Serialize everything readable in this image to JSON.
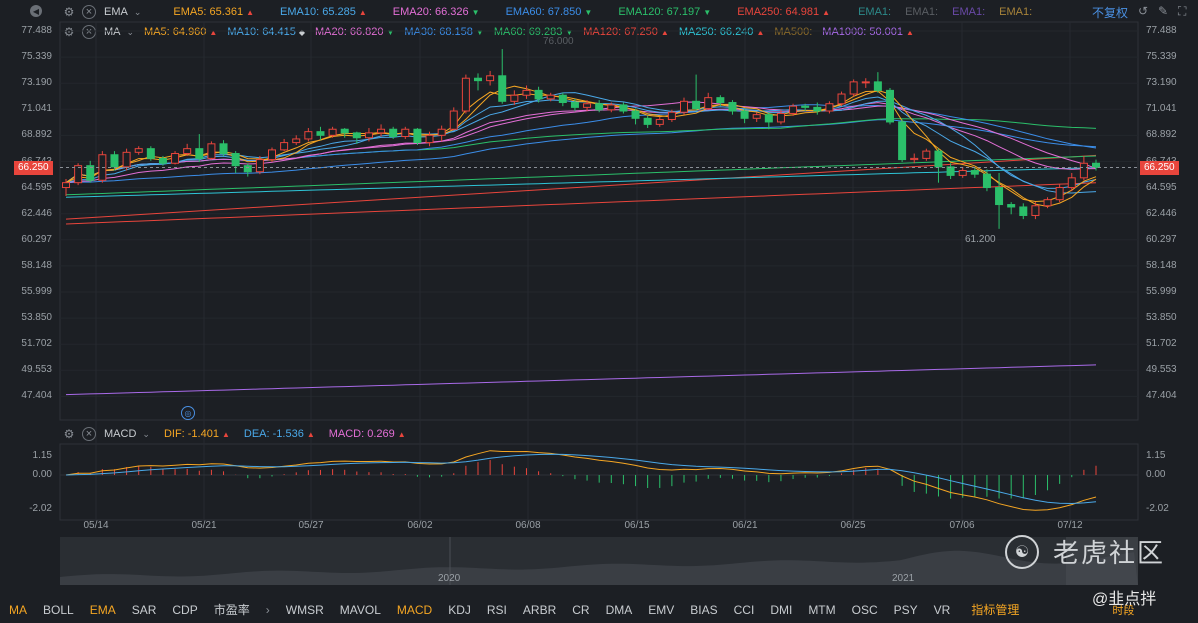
{
  "ema_row": {
    "name": "EMA",
    "items": [
      {
        "label": "EMA5: 65.361",
        "color": "#f5a623",
        "dir": "up"
      },
      {
        "label": "EMA10: 65.285",
        "color": "#4aa8e8",
        "dir": "up"
      },
      {
        "label": "EMA20: 66.326",
        "color": "#e36fd6",
        "dir": "dn"
      },
      {
        "label": "EMA60: 67.850",
        "color": "#3b8de8",
        "dir": "dn"
      },
      {
        "label": "EMA120: 67.197",
        "color": "#2bbf6a",
        "dir": "dn"
      },
      {
        "label": "EMA250: 64.981",
        "color": "#e8453c",
        "dir": "up"
      }
    ],
    "extra": [
      "EMA1:",
      "EMA1:",
      "EMA1:",
      "EMA1:"
    ],
    "extra_colors": [
      "#2c8a8a",
      "#5a5e63",
      "#6a4aa8",
      "#a8843a"
    ],
    "fq": "不复权"
  },
  "ma_row": {
    "name": "MA",
    "items": [
      {
        "label": "MA5: 64.960",
        "color": "#f5a623",
        "dir": "up"
      },
      {
        "label": "MA10: 64.415",
        "color": "#4aa8e8",
        "dir": "flat"
      },
      {
        "label": "MA20: 66.820",
        "color": "#e36fd6",
        "dir": "dn"
      },
      {
        "label": "MA30: 68.158",
        "color": "#3b8de8",
        "dir": "dn"
      },
      {
        "label": "MA60: 69.283",
        "color": "#2bbf6a",
        "dir": "dn"
      },
      {
        "label": "MA120: 67.250",
        "color": "#e8453c",
        "dir": "up"
      },
      {
        "label": "MA250: 66.240",
        "color": "#2ec4d6",
        "dir": "up"
      },
      {
        "label": "MA500:",
        "color": "#8a6a2a",
        "dir": "none"
      },
      {
        "label": "MA1000: 50.001",
        "color": "#a86ae8",
        "dir": "up"
      }
    ]
  },
  "price_axis": [
    "77.488",
    "75.339",
    "73.190",
    "71.041",
    "68.892",
    "66.743",
    "64.595",
    "62.446",
    "60.297",
    "58.148",
    "55.999",
    "53.850",
    "51.702",
    "49.553",
    "47.404"
  ],
  "current_price": "66.250",
  "high_label": "76.000",
  "low_label": "61.200",
  "macd_row": {
    "name": "MACD",
    "items": [
      {
        "label": "DIF: -1.401",
        "color": "#f5a623",
        "dir": "up"
      },
      {
        "label": "DEA: -1.536",
        "color": "#4aa8e8",
        "dir": "up"
      },
      {
        "label": "MACD: 0.269",
        "color": "#e36fd6",
        "dir": "up"
      }
    ]
  },
  "macd_axis": [
    "1.15",
    "0.00",
    "-2.02"
  ],
  "dates": [
    "05/14",
    "05/21",
    "05/27",
    "06/02",
    "06/08",
    "06/15",
    "06/21",
    "06/25",
    "07/06",
    "07/12"
  ],
  "navigator": {
    "years": [
      "2020",
      "2021"
    ]
  },
  "tabs": [
    {
      "label": "MA",
      "active": true
    },
    {
      "label": "BOLL",
      "active": false
    },
    {
      "label": "EMA",
      "active": true
    },
    {
      "label": "SAR",
      "active": false
    },
    {
      "label": "CDP",
      "active": false
    },
    {
      "label": "市盈率",
      "active": false
    },
    {
      "label": "WMSR",
      "active": false
    },
    {
      "label": "MAVOL",
      "active": false
    },
    {
      "label": "MACD",
      "active": true
    },
    {
      "label": "KDJ",
      "active": false
    },
    {
      "label": "RSI",
      "active": false
    },
    {
      "label": "ARBR",
      "active": false
    },
    {
      "label": "CR",
      "active": false
    },
    {
      "label": "DMA",
      "active": false
    },
    {
      "label": "EMV",
      "active": false
    },
    {
      "label": "BIAS",
      "active": false
    },
    {
      "label": "CCI",
      "active": false
    },
    {
      "label": "DMI",
      "active": false
    },
    {
      "label": "MTM",
      "active": false
    },
    {
      "label": "OSC",
      "active": false
    },
    {
      "label": "PSY",
      "active": false
    },
    {
      "label": "VR",
      "active": false
    }
  ],
  "tab_more": "指标管理",
  "tab_period": "时段",
  "watermark": "老虎社区",
  "watermark_user": "@韭点拌",
  "chart_data": {
    "type": "candlestick",
    "ylim": [
      47.404,
      77.488
    ],
    "candles": [
      [
        64.6,
        65.0,
        63.9,
        65.3
      ],
      [
        65.0,
        66.4,
        64.8,
        66.6
      ],
      [
        66.4,
        65.2,
        65.0,
        66.8
      ],
      [
        65.2,
        67.3,
        65.0,
        67.6
      ],
      [
        67.3,
        66.3,
        66.0,
        67.6
      ],
      [
        66.3,
        67.5,
        66.0,
        67.8
      ],
      [
        67.5,
        67.8,
        67.3,
        68.0
      ],
      [
        67.8,
        67.0,
        66.8,
        68.0
      ],
      [
        67.0,
        66.6,
        66.4,
        67.2
      ],
      [
        66.6,
        67.4,
        66.5,
        67.6
      ],
      [
        67.4,
        67.8,
        67.2,
        68.2
      ],
      [
        67.8,
        67.0,
        66.7,
        69.0
      ],
      [
        67.0,
        68.2,
        66.9,
        68.4
      ],
      [
        68.2,
        67.4,
        67.2,
        68.5
      ],
      [
        67.4,
        66.4,
        65.8,
        67.6
      ],
      [
        66.4,
        65.9,
        65.5,
        66.6
      ],
      [
        65.9,
        66.9,
        65.7,
        67.2
      ],
      [
        66.9,
        67.7,
        66.7,
        67.9
      ],
      [
        67.7,
        68.3,
        67.6,
        68.6
      ],
      [
        68.3,
        68.6,
        68.1,
        68.9
      ],
      [
        68.6,
        69.2,
        68.4,
        69.5
      ],
      [
        69.2,
        68.9,
        68.5,
        69.6
      ],
      [
        68.9,
        69.4,
        68.7,
        69.6
      ],
      [
        69.4,
        69.1,
        68.7,
        69.5
      ],
      [
        69.1,
        68.7,
        68.2,
        69.2
      ],
      [
        68.7,
        69.1,
        68.4,
        69.5
      ],
      [
        69.1,
        69.4,
        68.8,
        69.8
      ],
      [
        69.4,
        68.8,
        68.6,
        69.6
      ],
      [
        68.8,
        69.4,
        68.6,
        69.6
      ],
      [
        69.4,
        68.3,
        68.1,
        69.5
      ],
      [
        68.3,
        68.9,
        68.0,
        69.2
      ],
      [
        68.9,
        69.4,
        68.4,
        69.7
      ],
      [
        69.4,
        70.9,
        69.3,
        71.2
      ],
      [
        70.9,
        73.6,
        70.7,
        73.9
      ],
      [
        73.6,
        73.4,
        72.6,
        74.0
      ],
      [
        73.4,
        73.8,
        73.0,
        74.2
      ],
      [
        73.8,
        71.7,
        71.5,
        76.0
      ],
      [
        71.7,
        72.2,
        71.4,
        72.6
      ],
      [
        72.2,
        72.6,
        71.9,
        73.0
      ],
      [
        72.6,
        71.9,
        71.6,
        72.9
      ],
      [
        71.9,
        72.2,
        71.7,
        72.4
      ],
      [
        72.2,
        71.6,
        71.3,
        72.4
      ],
      [
        71.6,
        71.2,
        70.9,
        71.9
      ],
      [
        71.2,
        71.5,
        70.9,
        71.8
      ],
      [
        71.5,
        71.0,
        70.8,
        71.8
      ],
      [
        71.0,
        71.4,
        70.8,
        71.6
      ],
      [
        71.4,
        70.9,
        70.7,
        71.6
      ],
      [
        70.9,
        70.3,
        69.8,
        71.1
      ],
      [
        70.3,
        69.8,
        69.5,
        70.5
      ],
      [
        69.8,
        70.2,
        69.6,
        70.4
      ],
      [
        70.2,
        70.8,
        70.0,
        71.0
      ],
      [
        70.8,
        71.7,
        70.6,
        72.0
      ],
      [
        71.7,
        71.1,
        70.9,
        73.9
      ],
      [
        71.1,
        72.0,
        71.0,
        72.4
      ],
      [
        72.0,
        71.6,
        71.3,
        72.2
      ],
      [
        71.6,
        70.9,
        70.6,
        71.8
      ],
      [
        70.9,
        70.3,
        69.9,
        71.1
      ],
      [
        70.3,
        70.6,
        70.0,
        70.8
      ],
      [
        70.6,
        70.0,
        69.4,
        70.8
      ],
      [
        70.0,
        70.7,
        69.8,
        71.0
      ],
      [
        70.7,
        71.3,
        70.5,
        71.5
      ],
      [
        71.3,
        71.2,
        70.9,
        71.5
      ],
      [
        71.2,
        70.9,
        70.6,
        71.6
      ],
      [
        70.9,
        71.5,
        70.7,
        71.7
      ],
      [
        71.5,
        72.3,
        71.3,
        72.5
      ],
      [
        72.3,
        73.3,
        72.1,
        73.5
      ],
      [
        73.3,
        73.3,
        72.8,
        73.6
      ],
      [
        73.3,
        72.6,
        72.4,
        74.1
      ],
      [
        72.6,
        70.0,
        69.8,
        72.8
      ],
      [
        70.0,
        66.9,
        66.7,
        70.2
      ],
      [
        66.9,
        67.0,
        66.6,
        67.4
      ],
      [
        67.0,
        67.6,
        66.8,
        67.8
      ],
      [
        67.6,
        66.3,
        65.0,
        67.8
      ],
      [
        66.3,
        65.6,
        65.3,
        66.6
      ],
      [
        65.6,
        66.0,
        65.4,
        66.3
      ],
      [
        66.0,
        65.7,
        65.4,
        66.2
      ],
      [
        65.7,
        64.6,
        64.3,
        66.1
      ],
      [
        64.6,
        63.2,
        61.2,
        65.8
      ],
      [
        63.2,
        63.0,
        62.4,
        63.4
      ],
      [
        63.0,
        62.3,
        62.0,
        63.3
      ],
      [
        62.3,
        63.1,
        62.0,
        63.4
      ],
      [
        63.1,
        63.6,
        62.9,
        63.8
      ],
      [
        63.6,
        64.6,
        63.4,
        64.9
      ],
      [
        64.6,
        65.4,
        64.3,
        65.8
      ],
      [
        65.4,
        66.6,
        65.2,
        67.2
      ],
      [
        66.6,
        66.25,
        66.0,
        66.9
      ]
    ]
  }
}
